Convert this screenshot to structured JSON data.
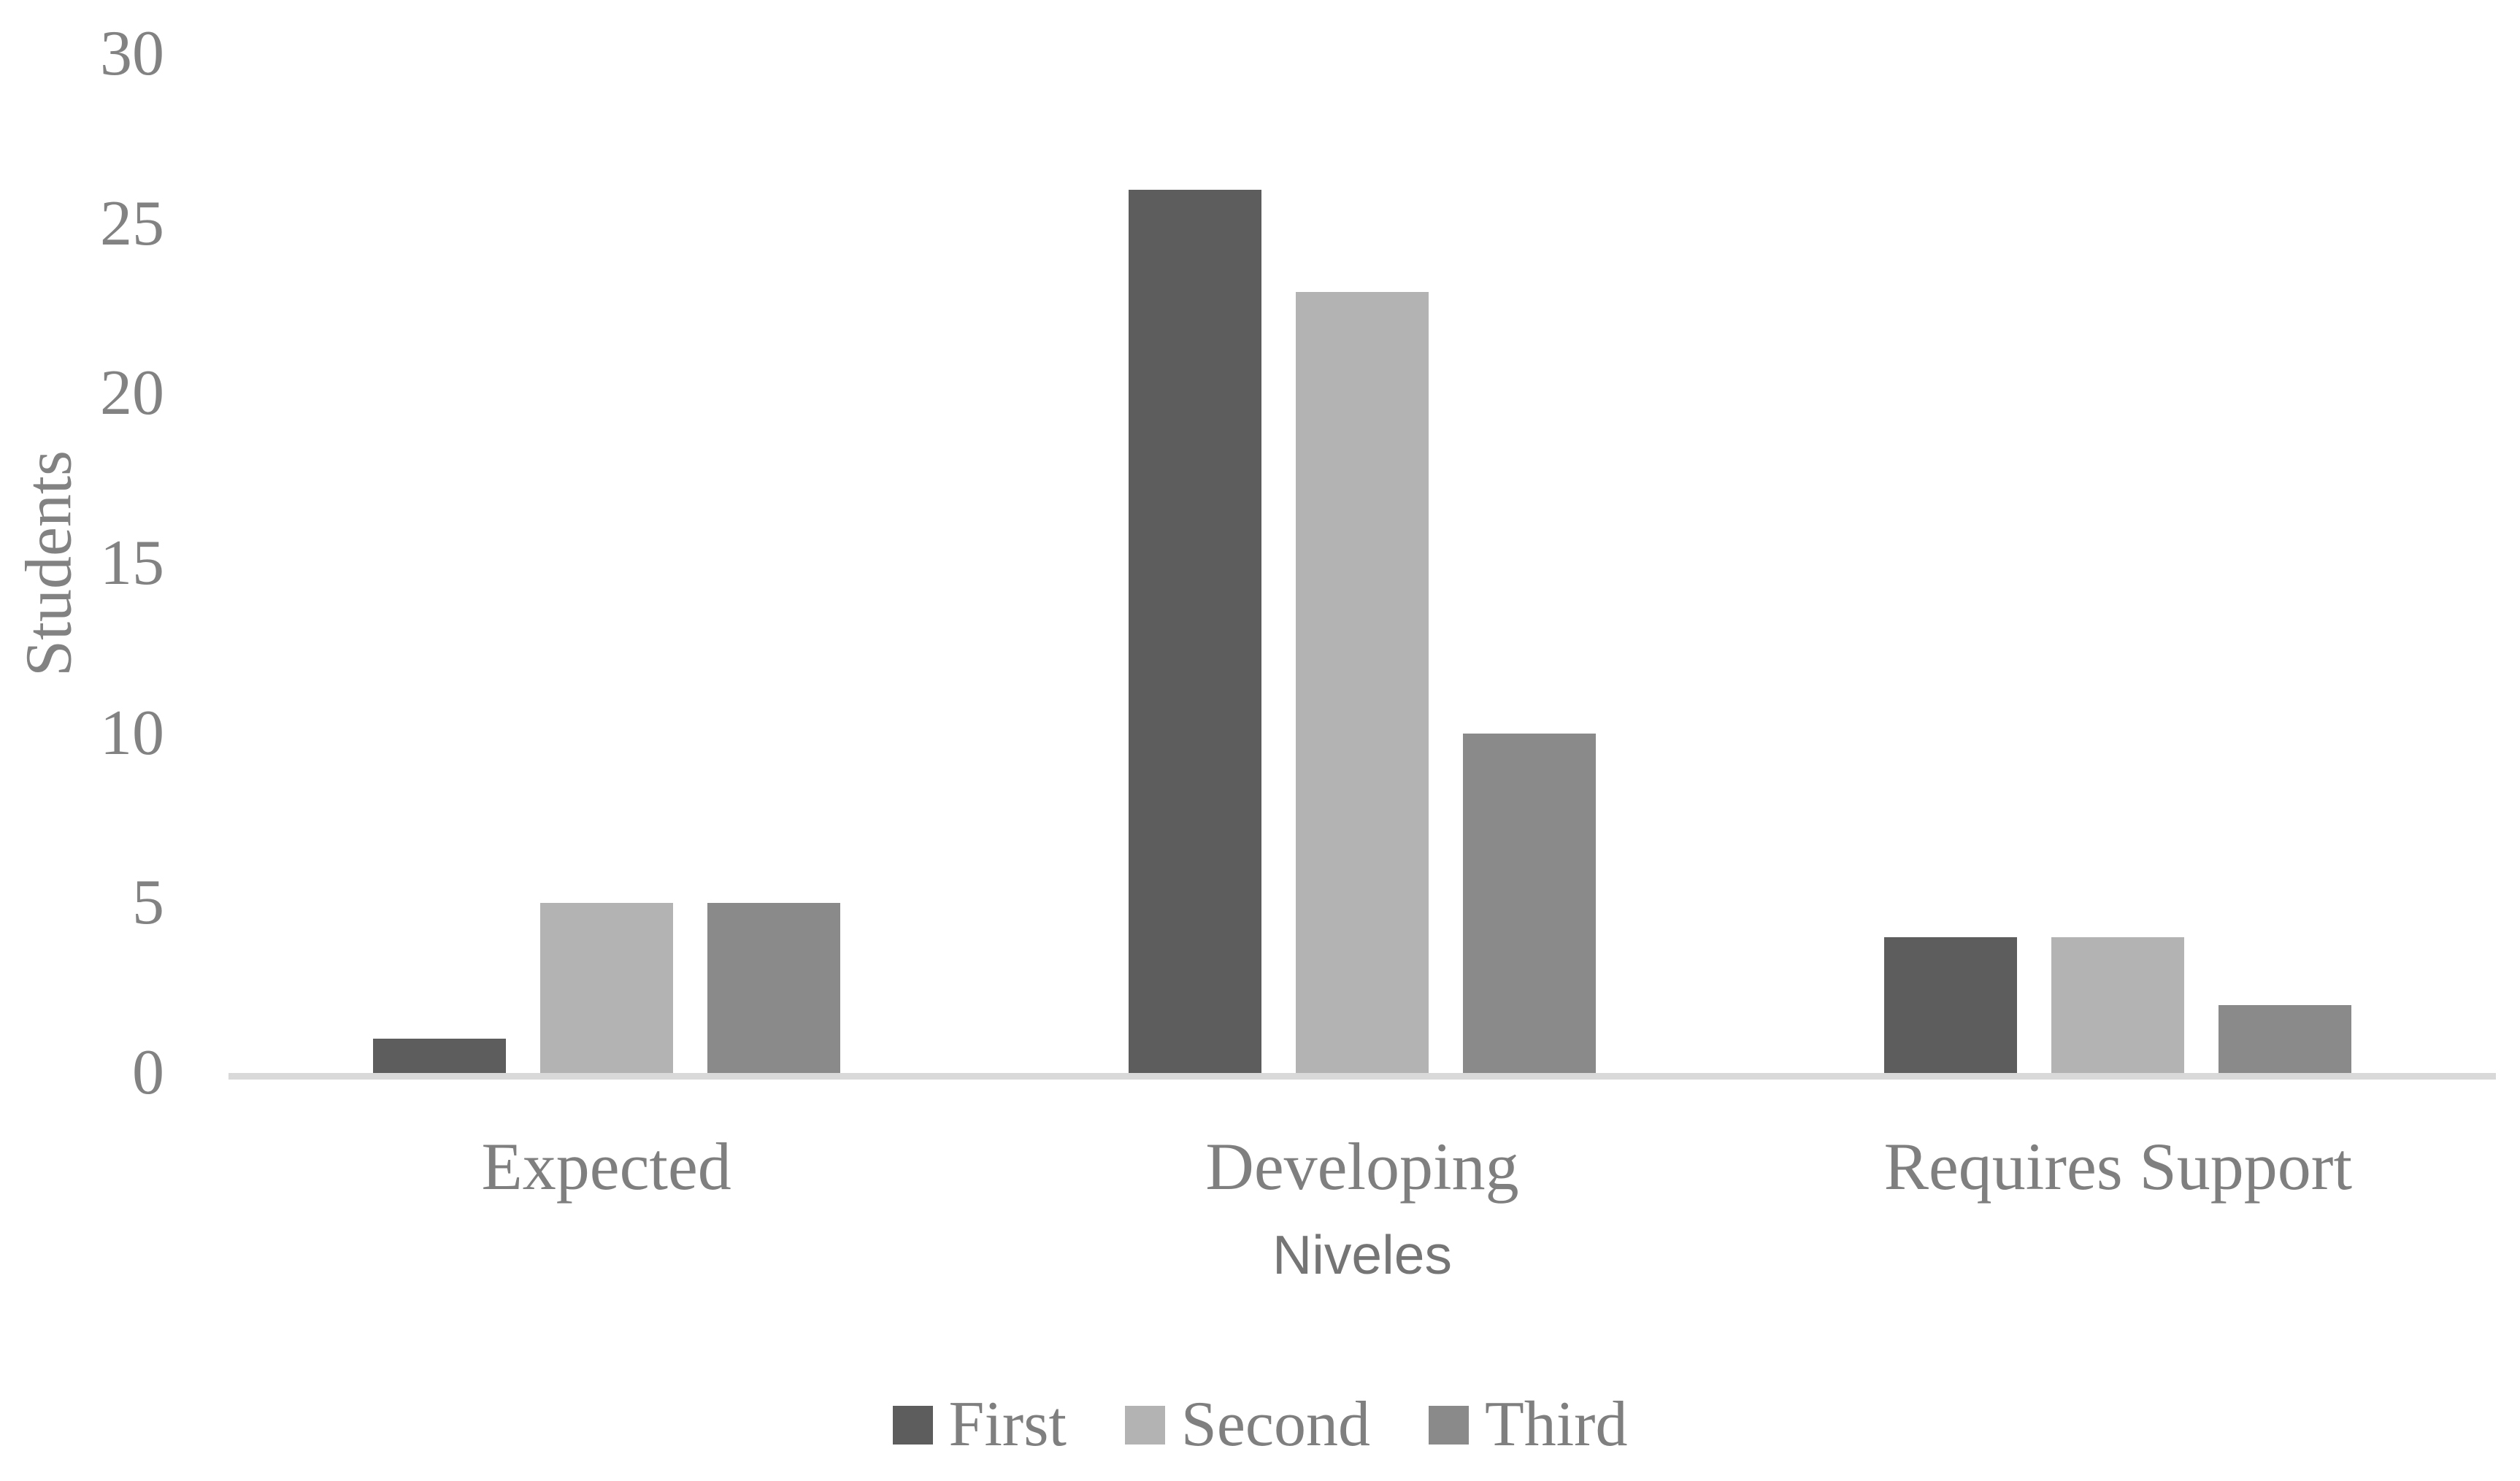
{
  "chart_data": {
    "type": "bar",
    "title": "",
    "categories": [
      "Expected",
      "Developing",
      "Requires Support"
    ],
    "series": [
      {
        "name": "First",
        "color": "#5d5d5d",
        "values": [
          1,
          26,
          4
        ]
      },
      {
        "name": "Second",
        "color": "#b3b3b3",
        "values": [
          5,
          23,
          4
        ]
      },
      {
        "name": "Third",
        "color": "#8a8a8a",
        "values": [
          5,
          10,
          2
        ]
      }
    ],
    "xlabel": "Niveles",
    "ylabel": "Students",
    "ylim": [
      0,
      30
    ],
    "ytick_step": 5,
    "yticks": [
      0,
      5,
      10,
      15,
      20,
      25,
      30
    ],
    "grid": false,
    "legend_position": "bottom"
  },
  "colors": {
    "axis_line": "#d9d9d9",
    "tick_text": "#828282",
    "label_text": "#7f7f7f"
  }
}
